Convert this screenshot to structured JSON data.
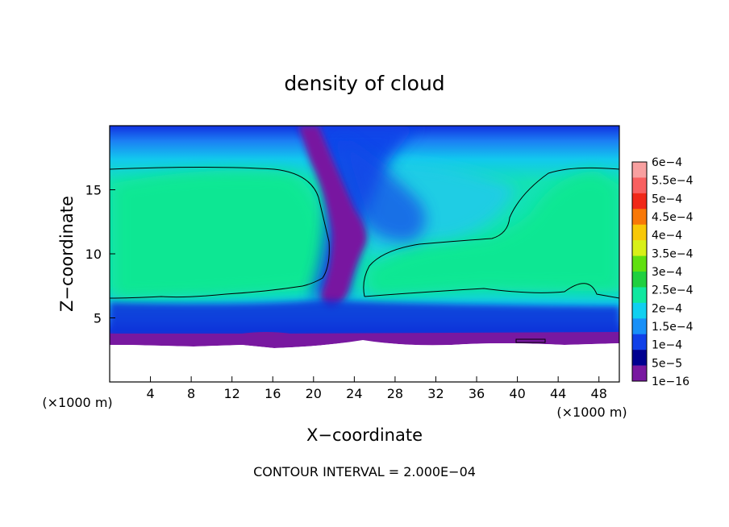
{
  "chart_data": {
    "type": "heatmap",
    "title": "density of cloud",
    "xlabel": "X−coordinate",
    "ylabel": "Z−coordinate",
    "x_unit_left": "(×1000 m)",
    "x_unit_right": "(×1000 m)",
    "xlim": [
      0,
      50
    ],
    "ylim": [
      0,
      20
    ],
    "x_ticks": [
      "4",
      "8",
      "12",
      "16",
      "20",
      "24",
      "28",
      "32",
      "36",
      "40",
      "44",
      "48"
    ],
    "y_ticks": [
      "5",
      "10",
      "15"
    ],
    "footer": "CONTOUR INTERVAL = 2.000E−04",
    "colorbar": {
      "labels": [
        "6e−4",
        "5.5e−4",
        "5e−4",
        "4.5e−4",
        "4e−4",
        "3.5e−4",
        "3e−4",
        "2.5e−4",
        "2e−4",
        "1.5e−4",
        "1e−4",
        "5e−5",
        "1e−16"
      ],
      "colors": [
        "#f8a0a0",
        "#f86060",
        "#f02818",
        "#f87808",
        "#f8c808",
        "#d8f018",
        "#60e010",
        "#20d040",
        "#10e8a0",
        "#10d0f0",
        "#1890f8",
        "#1040e8",
        "#000090",
        "#7818a0"
      ]
    },
    "approx_field_description_values": {
      "cloud_base_z": 3.2,
      "cloud_top_z": 20,
      "core_value_left": 0.00023,
      "core_value_right": 0.00022,
      "contour_level": 0.0002
    }
  }
}
